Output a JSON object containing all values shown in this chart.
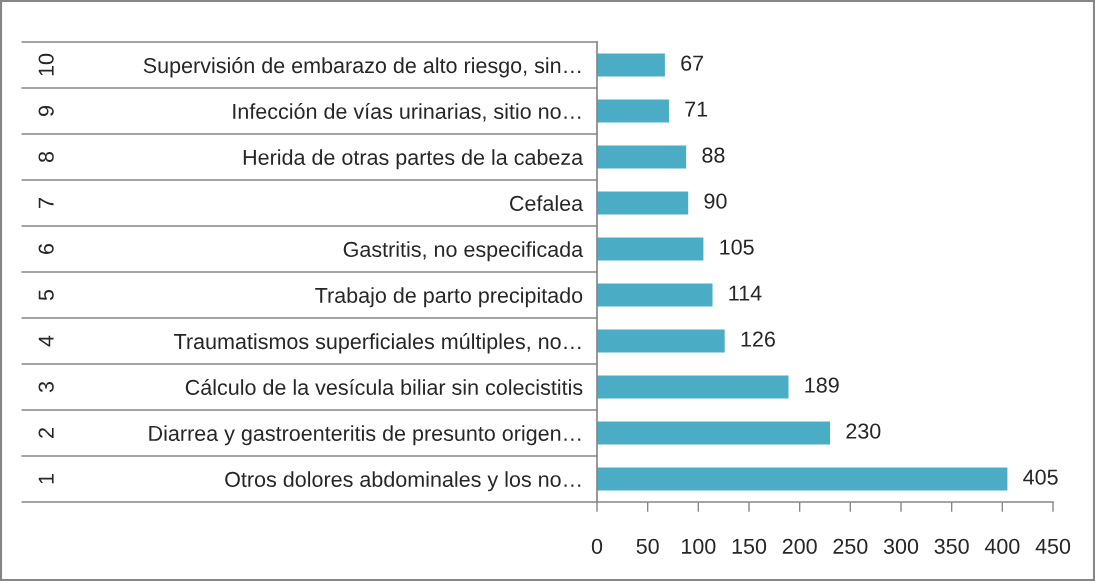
{
  "chart_data": {
    "type": "bar",
    "orientation": "horizontal",
    "categories": [
      "Supervisión de embarazo de alto riesgo, sin…",
      "Infección de vías urinarias, sitio no…",
      "Herida de otras partes de la cabeza",
      "Cefalea",
      "Gastritis, no especificada",
      "Trabajo de parto precipitado",
      "Traumatismos superficiales múltiples, no…",
      "Cálculo de la vesícula biliar sin colecistitis",
      "Diarrea y gastroenteritis de presunto origen…",
      "Otros dolores abdominales y los no…"
    ],
    "y2_categories": [
      "10",
      "9",
      "8",
      "7",
      "6",
      "5",
      "4",
      "3",
      "2",
      "1"
    ],
    "values": [
      67,
      71,
      88,
      90,
      105,
      114,
      126,
      189,
      230,
      405
    ],
    "color": "#4bacc6",
    "xlim": [
      0,
      450
    ],
    "xticks": [
      0,
      50,
      100,
      150,
      200,
      250,
      300,
      350,
      400,
      450
    ],
    "data_labels": true
  }
}
